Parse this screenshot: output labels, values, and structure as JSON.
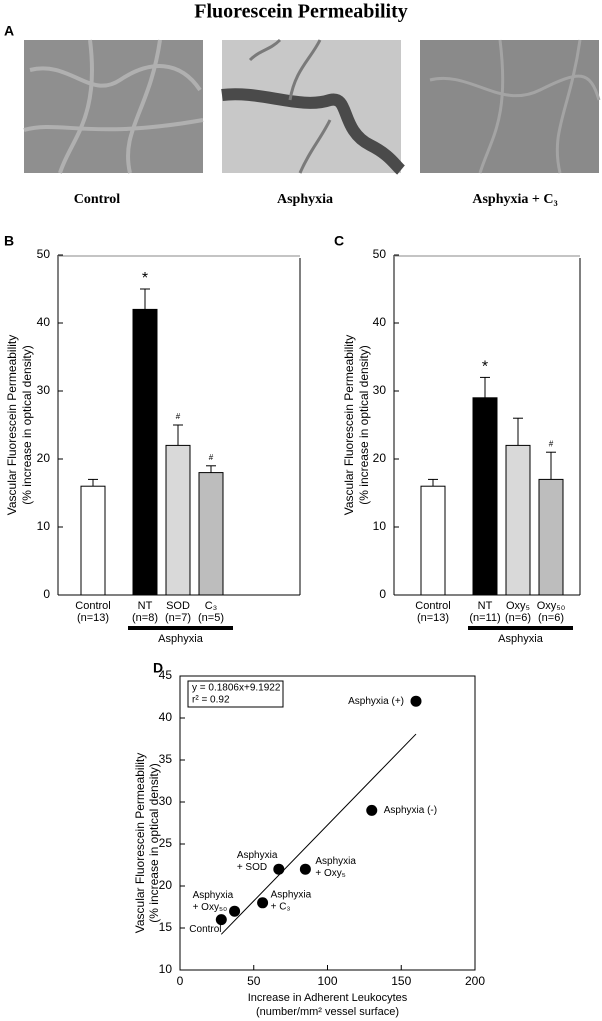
{
  "title": "Fluorescein Permeability",
  "panel_a": {
    "panel": "A",
    "captions": [
      "Control",
      "Asphyxia",
      "Asphyxia + C₃"
    ]
  },
  "chart_data": [
    {
      "type": "bar",
      "panel": "B",
      "ylabel": [
        "Vascular Fluorescein Permeability",
        "(% increase in optical density)"
      ],
      "categories": [
        "Control",
        "NT",
        "SOD",
        "C₃"
      ],
      "n_labels": [
        "(n=13)",
        "(n=8)",
        "(n=7)",
        "(n=5)"
      ],
      "values": [
        16,
        42,
        22,
        18
      ],
      "errors": [
        1,
        3,
        3,
        1
      ],
      "markers": [
        null,
        "*",
        "#",
        "#"
      ],
      "colors": [
        "#ffffff",
        "#000000",
        "#d9d9d9",
        "#bdbdbd"
      ],
      "group": {
        "label": "Asphyxia",
        "members": [
          false,
          true,
          true,
          true
        ]
      },
      "ylim": [
        0,
        50
      ],
      "yticks": [
        0,
        10,
        20,
        30,
        40,
        50
      ]
    },
    {
      "type": "bar",
      "panel": "C",
      "ylabel": [
        "Vascular Fluorescein Permeability",
        "(% increase in optical density)"
      ],
      "categories": [
        "Control",
        "NT",
        "Oxy₅",
        "Oxy₅₀"
      ],
      "n_labels": [
        "(n=13)",
        "(n=11)",
        "(n=6)",
        "(n=6)"
      ],
      "values": [
        16,
        29,
        22,
        17
      ],
      "errors": [
        1,
        3,
        4,
        4
      ],
      "markers": [
        null,
        "*",
        null,
        "#"
      ],
      "colors": [
        "#ffffff",
        "#000000",
        "#d9d9d9",
        "#bdbdbd"
      ],
      "group": {
        "label": "Asphyxia",
        "members": [
          false,
          true,
          true,
          true
        ]
      },
      "ylim": [
        0,
        50
      ],
      "yticks": [
        0,
        10,
        20,
        30,
        40,
        50
      ]
    },
    {
      "type": "scatter",
      "panel": "D",
      "ylabel": [
        "Vascular Fluorescein Permeability",
        "(% increase in optical density)"
      ],
      "xlabel": [
        "Increase in Adherent Leukocytes",
        "(number/mm² vessel surface)"
      ],
      "x": [
        28,
        37,
        56,
        67,
        85,
        130,
        160
      ],
      "values": [
        16,
        17,
        18,
        22,
        22,
        29,
        42
      ],
      "labels": [
        [
          "Control"
        ],
        [
          "Asphyxia",
          "+ Oxy₅₀"
        ],
        [
          "Asphyxia",
          "+ C₃"
        ],
        [
          "Asphyxia",
          "+ SOD"
        ],
        [
          "Asphyxia",
          "+ Oxy₅"
        ],
        [
          "Asphyxia (-)"
        ],
        [
          "Asphyxia (+)"
        ]
      ],
      "color": "#000000",
      "equation": [
        "y = 0.1806x+9.1922",
        "r² = 0.92"
      ],
      "fit": {
        "slope": 0.1806,
        "intercept": 9.1922,
        "xlim": [
          28,
          160
        ]
      },
      "xlim": [
        0,
        200
      ],
      "xticks": [
        0,
        50,
        100,
        150,
        200
      ],
      "ylim": [
        10,
        45
      ],
      "yticks": [
        10,
        15,
        20,
        25,
        30,
        35,
        40,
        45
      ]
    }
  ]
}
